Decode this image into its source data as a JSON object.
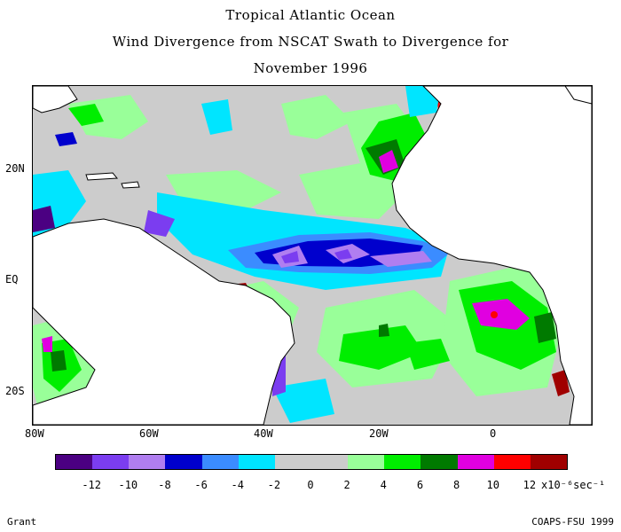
{
  "title": {
    "line1": "Tropical Atlantic Ocean",
    "line2": "Wind Divergence from NSCAT Swath to Divergence for",
    "line3": "November 1996"
  },
  "axes": {
    "y_labels": [
      "20N",
      "EQ",
      "20S"
    ],
    "x_labels": [
      "80W",
      "60W",
      "40W",
      "20W",
      "0"
    ]
  },
  "legend": {
    "colors": [
      "#4b0082",
      "#7b3df0",
      "#b07ef0",
      "#0000cd",
      "#3b8cff",
      "#00e5ff",
      "#cccccc",
      "#cccccc",
      "#99ff99",
      "#00ee00",
      "#007a00",
      "#e000e0",
      "#ff0000",
      "#a00000"
    ],
    "tick_labels": [
      "-12",
      "-10",
      "-8",
      "-6",
      "-4",
      "-2",
      "0",
      "2",
      "4",
      "6",
      "8",
      "10",
      "12"
    ],
    "units": "x10⁻⁶sec⁻¹"
  },
  "credits": {
    "left": "Grant",
    "right": "COAPS-FSU 1999"
  }
}
